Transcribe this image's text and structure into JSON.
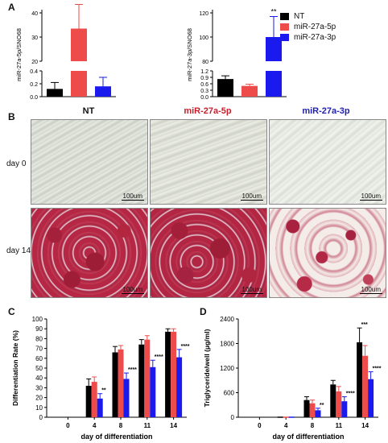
{
  "panels": {
    "a": "A",
    "b": "B",
    "c": "C",
    "d": "D"
  },
  "colors": {
    "NT": "#000000",
    "miR-27a-5p": "#ee4b4b",
    "miR-27a-3p": "#1a1aee"
  },
  "legend": [
    {
      "label": "NT",
      "color": "#000000"
    },
    {
      "label": "miR-27a-5p",
      "color": "#ee4b4b"
    },
    {
      "label": "miR-27a-3p",
      "color": "#1a1aee"
    }
  ],
  "panel_b": {
    "columns": [
      {
        "label": "NT",
        "color": "#000000"
      },
      {
        "label": "miR-27a-5p",
        "color": "#c8202c"
      },
      {
        "label": "miR-27a-3p",
        "color": "#2222aa"
      }
    ],
    "rows": [
      "day 0",
      "day 14"
    ],
    "scale_bar": "100um"
  },
  "chart_data": [
    {
      "id": "A1",
      "type": "bar",
      "ylabel": "miR-27a-5p/SNO68",
      "categories": [
        "NT",
        "miR-27a-5p",
        "miR-27a-3p"
      ],
      "values": [
        0.12,
        33.5,
        0.16
      ],
      "errors": [
        0.1,
        10,
        0.14
      ],
      "significance": [
        "",
        "*",
        ""
      ],
      "broken_axis": {
        "lower": [
          0,
          0.4
        ],
        "upper": [
          20,
          40
        ]
      },
      "yticks_lower": [
        "0.0",
        "0.2",
        "0.4"
      ],
      "yticks_upper": [
        "20",
        "30",
        "40"
      ]
    },
    {
      "id": "A2",
      "type": "bar",
      "ylabel": "miR-27a-3p/SNO68",
      "categories": [
        "NT",
        "miR-27a-5p",
        "miR-27a-3p"
      ],
      "values": [
        0.82,
        0.5,
        100
      ],
      "errors": [
        0.15,
        0.08,
        17
      ],
      "significance": [
        "",
        "",
        "**"
      ],
      "broken_axis": {
        "lower": [
          0,
          1.2
        ],
        "upper": [
          80,
          120
        ]
      },
      "yticks_lower": [
        "0.0",
        "0.3",
        "0.6",
        "0.9",
        "1.2"
      ],
      "yticks_upper": [
        "80",
        "100",
        "120"
      ]
    },
    {
      "id": "C",
      "type": "bar",
      "xlabel": "day of differentiation",
      "ylabel": "Differentiation Rate (%)",
      "categories": [
        "0",
        "4",
        "8",
        "11",
        "14"
      ],
      "ylim": [
        0,
        100
      ],
      "yticks": [
        "0",
        "10",
        "20",
        "30",
        "40",
        "50",
        "60",
        "70",
        "80",
        "90",
        "100"
      ],
      "series": [
        {
          "name": "NT",
          "values": [
            0,
            32,
            66,
            74,
            87
          ],
          "errors": [
            0,
            7,
            6,
            5,
            3
          ]
        },
        {
          "name": "miR-27a-5p",
          "values": [
            0,
            36,
            69,
            79,
            87
          ],
          "errors": [
            0,
            5,
            4,
            4,
            3
          ]
        },
        {
          "name": "miR-27a-3p",
          "values": [
            0,
            19,
            39,
            51,
            61
          ],
          "errors": [
            0,
            5,
            6,
            7,
            8
          ]
        }
      ],
      "significance": [
        "",
        "**",
        "****",
        "****",
        "****"
      ]
    },
    {
      "id": "D",
      "type": "bar",
      "xlabel": "day of differentiation",
      "ylabel": "Triglyceride/well (μg/ml)",
      "categories": [
        "0",
        "4",
        "8",
        "11",
        "14"
      ],
      "ylim": [
        0,
        2400
      ],
      "yticks": [
        "0",
        "600",
        "1200",
        "1800",
        "2400"
      ],
      "series": [
        {
          "name": "NT",
          "values": [
            0,
            0,
            420,
            800,
            1830
          ],
          "errors": [
            0,
            0,
            80,
            100,
            350
          ]
        },
        {
          "name": "miR-27a-5p",
          "values": [
            0,
            0,
            340,
            630,
            1500
          ],
          "errors": [
            0,
            0,
            80,
            120,
            250
          ]
        },
        {
          "name": "miR-27a-3p",
          "values": [
            0,
            0,
            170,
            390,
            930
          ],
          "errors": [
            0,
            0,
            50,
            110,
            180
          ]
        }
      ],
      "significance": [
        [
          "",
          "",
          "",
          "",
          "***"
        ],
        [
          "",
          "",
          "**",
          "****",
          "****"
        ]
      ]
    }
  ]
}
